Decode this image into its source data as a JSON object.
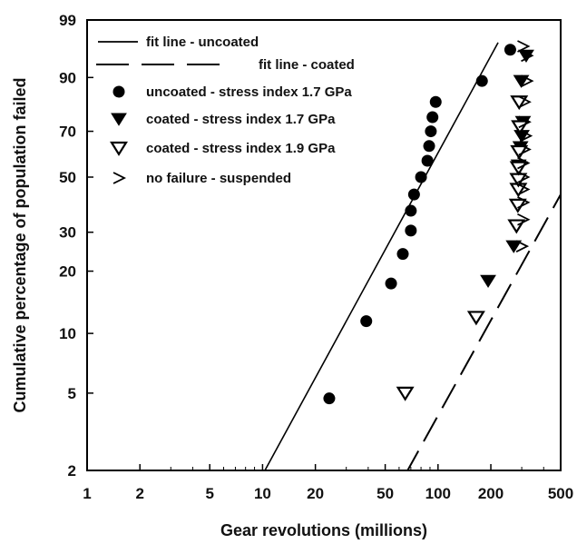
{
  "chart_data": {
    "type": "scatter",
    "title": "",
    "xlabel": "Gear revolutions (millions)",
    "ylabel": "Cumulative percentage of population failed",
    "x_scale": "log",
    "y_scale": "weibull probability",
    "xlim": [
      1,
      500
    ],
    "ylim": [
      2,
      99
    ],
    "x_ticks": [
      1,
      2,
      5,
      10,
      20,
      50,
      100,
      200,
      500
    ],
    "y_ticks": [
      2,
      5,
      10,
      20,
      30,
      50,
      70,
      90,
      99
    ],
    "grid": false,
    "legend_position": "top-left",
    "series": [
      {
        "name": "fit line - uncoated",
        "kind": "line",
        "style": "solid",
        "points": [
          [
            10,
            1.9
          ],
          [
            220,
            97
          ]
        ]
      },
      {
        "name": "fit line - coated",
        "kind": "line",
        "style": "long-dash",
        "points": [
          [
            65,
            1.9
          ],
          [
            500,
            43
          ]
        ]
      },
      {
        "name": "uncoated - stress index 1.7 GPa",
        "kind": "marker",
        "marker": "filled-circle",
        "points": [
          [
            24,
            4.7
          ],
          [
            39,
            11.5
          ],
          [
            54,
            17.5
          ],
          [
            63,
            24
          ],
          [
            70,
            30.5
          ],
          [
            70,
            37
          ],
          [
            73,
            43
          ],
          [
            80,
            50
          ],
          [
            87,
            57
          ],
          [
            89,
            63.5
          ],
          [
            91,
            70
          ],
          [
            93,
            76
          ],
          [
            97,
            82
          ],
          [
            178,
            89
          ],
          [
            258,
            96
          ]
        ]
      },
      {
        "name": "coated    - stress index 1.7 GPa",
        "kind": "marker",
        "marker": "filled-triangle-down",
        "points": [
          [
            193,
            18
          ],
          [
            270,
            26
          ],
          [
            288,
            55
          ],
          [
            295,
            63
          ],
          [
            300,
            68
          ],
          [
            305,
            74
          ],
          [
            318,
            95
          ],
          [
            298,
            89
          ]
        ]
      },
      {
        "name": "coated    - stress index 1.9 GPa",
        "kind": "marker",
        "marker": "open-triangle-down",
        "points": [
          [
            65,
            5
          ],
          [
            165,
            12
          ],
          [
            280,
            32
          ],
          [
            285,
            39
          ],
          [
            287,
            45
          ],
          [
            287,
            49
          ],
          [
            288,
            54
          ],
          [
            290,
            61
          ],
          [
            293,
            72
          ],
          [
            290,
            82
          ]
        ]
      },
      {
        "name": "no failure - suspended",
        "kind": "marker",
        "marker": "greater-than",
        "points": [
          [
            300,
            26
          ],
          [
            305,
            34
          ],
          [
            305,
            40
          ],
          [
            305,
            45
          ],
          [
            305,
            50
          ],
          [
            305,
            56
          ],
          [
            310,
            62
          ],
          [
            315,
            68
          ],
          [
            310,
            74
          ],
          [
            310,
            82
          ],
          [
            320,
            89
          ],
          [
            320,
            95
          ],
          [
            305,
            96.5
          ]
        ]
      }
    ]
  }
}
